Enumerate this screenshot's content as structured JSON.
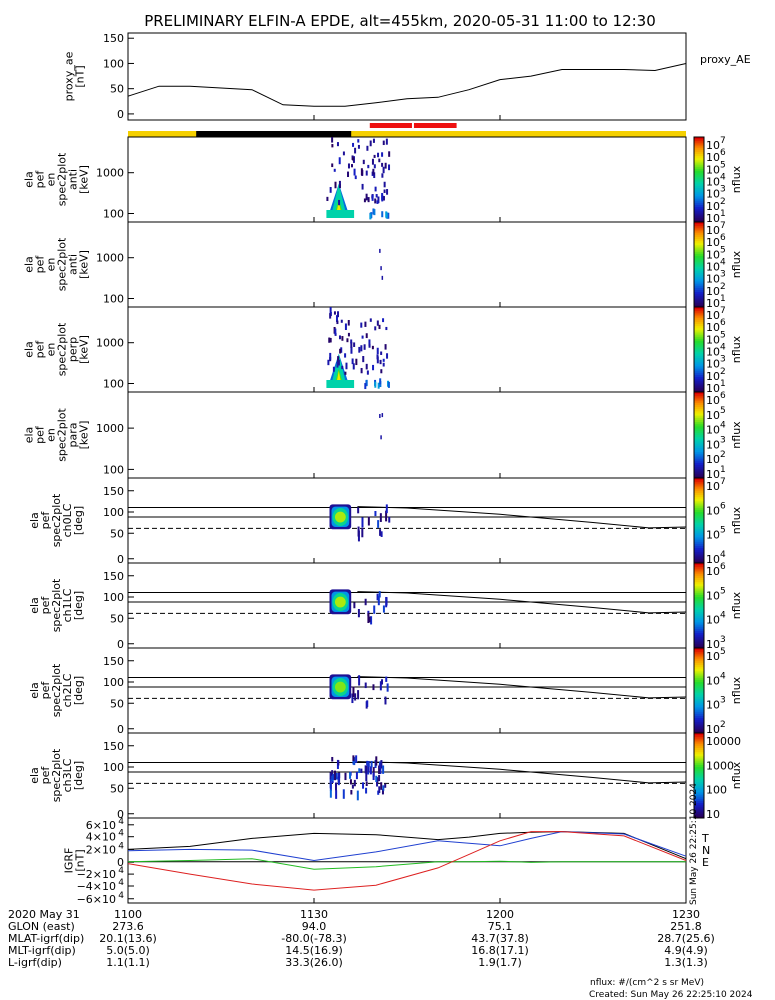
{
  "title": "PRELIMINARY ELFIN-A EPDE, alt=455km, 2020-05-31 11:00 to 12:30",
  "colors": {
    "orbit_bar": "#f5d000",
    "eclipse_bar": "#000000",
    "science_bar": "#ee1010",
    "line_black": "#000000",
    "igrf_red": "#dd2020",
    "igrf_blue": "#2040d0",
    "igrf_green": "#22bb22"
  },
  "time_axis": {
    "tick_labels": [
      "1100",
      "1130",
      "1200",
      "1230"
    ],
    "minutes": [
      0,
      30,
      60,
      90
    ],
    "range_minutes": [
      0,
      90
    ]
  },
  "ephemeris": {
    "rows": [
      {
        "label": "2020 May 31",
        "values": [
          "1100",
          "1130",
          "1200",
          "1230"
        ]
      },
      {
        "label": "GLON (east)",
        "values": [
          "273.6",
          "94.0",
          "75.1",
          "251.8"
        ]
      },
      {
        "label": "MLAT-igrf(dip)",
        "values": [
          "20.1(13.6)",
          "-80.0(-78.3)",
          "43.7(37.8)",
          "28.7(25.6)"
        ]
      },
      {
        "label": "MLT-igrf(dip)",
        "values": [
          "5.0(5.0)",
          "14.5(16.9)",
          "16.8(17.1)",
          "4.9(4.9)"
        ]
      },
      {
        "label": "L-igrf(dip)",
        "values": [
          "1.1(1.1)",
          "33.3(26.0)",
          "1.9(1.7)",
          "1.3(1.3)"
        ]
      }
    ]
  },
  "footer": {
    "units": "nflux: #/(cm^2 s sr MeV)",
    "created": "Created: Sun May 26 22:25:10 2024",
    "stamp": "Sun May 26 22:25:10 2024"
  },
  "panels": [
    {
      "ylabel": [
        "proxy_ae",
        "[nT]"
      ],
      "yticks": [
        "150",
        "100",
        "50",
        "0"
      ],
      "side_label": "proxy_AE"
    },
    {
      "ylabel": [
        "ela",
        "pef",
        "en",
        "spec2plot",
        "anti",
        "[keV]"
      ],
      "yticks": [
        "1000",
        "100"
      ],
      "cbar_ticks": [
        "10",
        "10",
        "10",
        "10",
        "10",
        "10",
        "10"
      ],
      "cbar_exps": [
        "7",
        "6",
        "5",
        "4",
        "3",
        "2",
        "1"
      ],
      "cbar_label": "nflux"
    },
    {
      "ylabel": [
        "ela",
        "pef",
        "en",
        "spec2plot",
        "anti",
        "[keV]"
      ],
      "yticks": [
        "1000",
        "100"
      ],
      "cbar_ticks": [
        "10",
        "10",
        "10",
        "10",
        "10",
        "10",
        "10"
      ],
      "cbar_exps": [
        "7",
        "6",
        "5",
        "4",
        "3",
        "2",
        "1"
      ],
      "cbar_label": "nflux"
    },
    {
      "ylabel": [
        "ela",
        "pef",
        "en",
        "spec2plot",
        "perp",
        "[keV]"
      ],
      "yticks": [
        "1000",
        "100"
      ],
      "cbar_ticks": [
        "10",
        "10",
        "10",
        "10",
        "10",
        "10",
        "10"
      ],
      "cbar_exps": [
        "7",
        "6",
        "5",
        "4",
        "3",
        "2",
        "1"
      ],
      "cbar_label": "nflux"
    },
    {
      "ylabel": [
        "ela",
        "pef",
        "en",
        "spec2plot",
        "para",
        "[keV]"
      ],
      "yticks": [
        "1000",
        "100"
      ],
      "cbar_ticks": [
        "10",
        "10",
        "10",
        "10",
        "10",
        "10"
      ],
      "cbar_exps": [
        "6",
        "5",
        "4",
        "3",
        "2",
        "1"
      ],
      "cbar_label": "nflux"
    },
    {
      "ylabel": [
        "ela",
        "pef",
        "spec2plot",
        "ch0LC",
        "[deg]"
      ],
      "yticks": [
        "150",
        "100",
        "50",
        "0"
      ],
      "cbar_ticks": [
        "10",
        "10",
        "10",
        "10"
      ],
      "cbar_exps": [
        "7",
        "6",
        "5",
        "4"
      ],
      "cbar_label": "nflux"
    },
    {
      "ylabel": [
        "ela",
        "pef",
        "spec2plot",
        "ch1LC",
        "[deg]"
      ],
      "yticks": [
        "150",
        "100",
        "50",
        "0"
      ],
      "cbar_ticks": [
        "10",
        "10",
        "10",
        "10"
      ],
      "cbar_exps": [
        "6",
        "5",
        "4",
        "3"
      ],
      "cbar_label": "nflux"
    },
    {
      "ylabel": [
        "ela",
        "pef",
        "spec2plot",
        "ch2LC",
        "[deg]"
      ],
      "yticks": [
        "150",
        "100",
        "50",
        "0"
      ],
      "cbar_ticks": [
        "10",
        "10",
        "10",
        "10"
      ],
      "cbar_exps": [
        "5",
        "4",
        "3",
        "2"
      ],
      "cbar_label": "nflux"
    },
    {
      "ylabel": [
        "ela",
        "pef",
        "spec2plot",
        "ch3LC",
        "[deg]"
      ],
      "yticks": [
        "150",
        "100",
        "50",
        "0"
      ],
      "cbar_ticks": [
        "10000",
        "1000",
        "100",
        "10"
      ],
      "cbar_exps": [
        "",
        "",
        "",
        ""
      ],
      "cbar_label": "nflux"
    },
    {
      "ylabel": [
        "IGRF",
        "[nT]"
      ],
      "yticks": [
        "6×10",
        "4×10",
        "2×10",
        "0",
        "−2×10",
        "−4×10",
        "−6×10"
      ],
      "ytick_exps": [
        "4",
        "4",
        "4",
        "",
        "4",
        "4",
        "4"
      ],
      "legend": [
        "T",
        "N",
        "E"
      ]
    }
  ],
  "chart_data": [
    {
      "type": "line",
      "name": "proxy_AE",
      "x": [
        0,
        5,
        10,
        20,
        25,
        30,
        35,
        40,
        45,
        50,
        55,
        60,
        65,
        70,
        75,
        80,
        85,
        90
      ],
      "y": [
        35,
        55,
        55,
        48,
        18,
        15,
        15,
        22,
        30,
        33,
        48,
        68,
        75,
        88,
        88,
        88,
        86,
        100
      ],
      "ylim": [
        0,
        150
      ],
      "xlim": [
        0,
        90
      ]
    },
    {
      "type": "heatmap",
      "name": "anti energy spectrogram",
      "x_range_minutes": [
        32,
        42
      ],
      "peak_minutes": 34,
      "y_range_keV": [
        60,
        6000
      ],
      "log_y": true
    },
    {
      "type": "heatmap",
      "name": "perp energy spectrogram",
      "x_range_minutes": [
        32,
        42
      ],
      "peak_minutes": 34,
      "y_range_keV": [
        60,
        6000
      ],
      "log_y": true
    },
    {
      "type": "line",
      "name": "loss cone lines",
      "x": [
        0,
        30,
        37,
        45,
        60,
        75,
        84,
        90
      ],
      "y_solid_upper": [
        113,
        113,
        113,
        113,
        113,
        113,
        113,
        113
      ],
      "y_solid_lower": [
        92,
        92,
        92,
        92,
        92,
        92,
        92,
        92
      ],
      "y_dashed": [
        67,
        67,
        67,
        67,
        67,
        67,
        67,
        67
      ],
      "y_trend": [
        null,
        null,
        115,
        112,
        98,
        80,
        68,
        70
      ],
      "ylim": [
        0,
        170
      ]
    },
    {
      "type": "line",
      "name": "IGRF components",
      "x": [
        0,
        10,
        20,
        30,
        40,
        50,
        55,
        60,
        65,
        70,
        80,
        90
      ],
      "series": [
        {
          "name": "T",
          "values": [
            20000,
            25000,
            38000,
            46000,
            44000,
            36000,
            40000,
            46000,
            48000,
            49000,
            46000,
            5000
          ]
        },
        {
          "name": "N",
          "values": [
            18000,
            20000,
            19000,
            2000,
            16000,
            34000,
            30000,
            26000,
            38000,
            49000,
            45000,
            9000
          ]
        },
        {
          "name": "E",
          "values": [
            0,
            2000,
            5000,
            -12000,
            -8000,
            0,
            0,
            1000,
            -1000,
            0,
            0,
            0
          ]
        },
        {
          "name": "red",
          "values": [
            -3000,
            -20000,
            -36000,
            -46000,
            -38000,
            -10000,
            12000,
            34000,
            49000,
            49000,
            42000,
            2000
          ]
        }
      ],
      "ylim": [
        -60000,
        60000
      ]
    }
  ]
}
